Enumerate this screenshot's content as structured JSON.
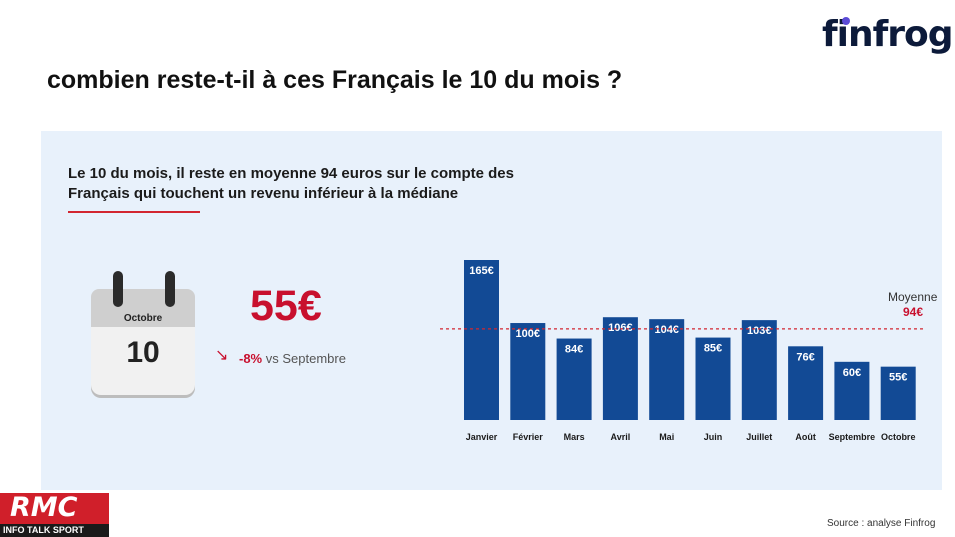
{
  "brand": {
    "logo_text": "finfrog",
    "logo_dot_color": "#5b4bd6"
  },
  "headline": "combien reste-t-il à ces Français le 10 du mois ?",
  "intro": "Le 10 du mois, il reste en moyenne 94 euros sur le compte des Français qui touchent un revenu inférieur à la médiane",
  "calendar": {
    "month": "Octobre",
    "day": "10"
  },
  "highlight": {
    "value": "55€",
    "arrow": "↘",
    "delta_pct": "-8%",
    "delta_text": " vs Septembre"
  },
  "average": {
    "label": "Moyenne",
    "value_label": "94€"
  },
  "source": "Source : analyse Finfrog",
  "rmc": {
    "main": "RMC",
    "sub": "INFO TALK SPORT"
  },
  "colors": {
    "bar": "#124a95",
    "accent": "#d22630",
    "panel": "#e8f1fb"
  },
  "chart_data": {
    "type": "bar",
    "categories": [
      "Janvier",
      "Février",
      "Mars",
      "Avril",
      "Mai",
      "Juin",
      "Juillet",
      "Août",
      "Septembre",
      "Octobre"
    ],
    "values": [
      165,
      100,
      84,
      106,
      104,
      85,
      103,
      76,
      60,
      55
    ],
    "value_labels": [
      "165€",
      "100€",
      "84€",
      "106€",
      "104€",
      "85€",
      "103€",
      "76€",
      "60€",
      "55€"
    ],
    "average": 94,
    "ylim": [
      0,
      165
    ],
    "grid": false
  }
}
